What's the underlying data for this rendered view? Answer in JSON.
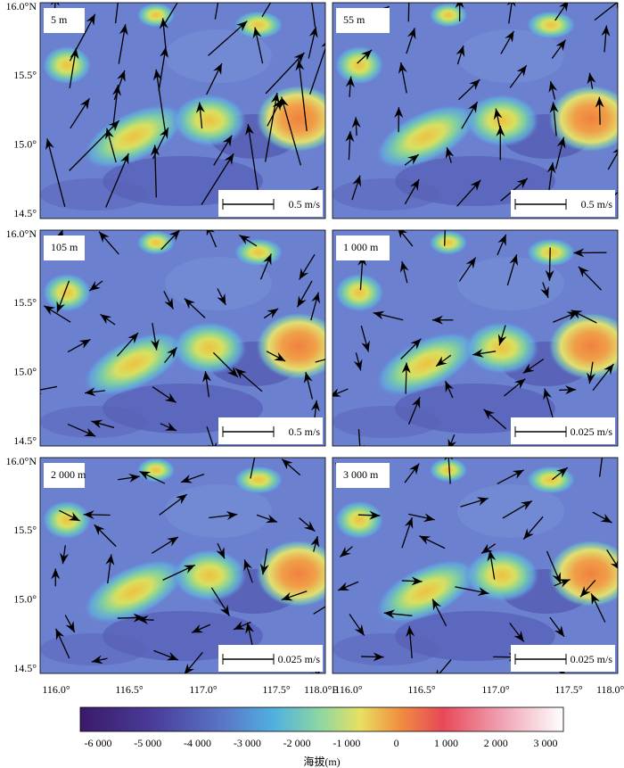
{
  "panels": [
    {
      "label": "5 m",
      "scale": "0.5 m/s"
    },
    {
      "label": "55 m",
      "scale": "0.5 m/s"
    },
    {
      "label": "105 m",
      "scale": "0.5 m/s"
    },
    {
      "label": "1 000 m",
      "scale": "0.025 m/s"
    },
    {
      "label": "2 000 m",
      "scale": "0.025 m/s"
    },
    {
      "label": "3 000 m",
      "scale": "0.025 m/s"
    }
  ],
  "y_axis": {
    "labels": [
      "16.0°N",
      "15.5°",
      "15.0°",
      "14.5°"
    ]
  },
  "x_axis": {
    "labels": [
      "116.0°",
      "116.5°",
      "117.0°",
      "117.5°",
      "118.0°E"
    ]
  },
  "colorbar": {
    "ticks": [
      "-6 000",
      "-5 000",
      "-4 000",
      "-3 000",
      "-2 000",
      "-1 000",
      "0",
      "1 000",
      "2 000",
      "3 000"
    ],
    "title": "海拔(m)"
  }
}
